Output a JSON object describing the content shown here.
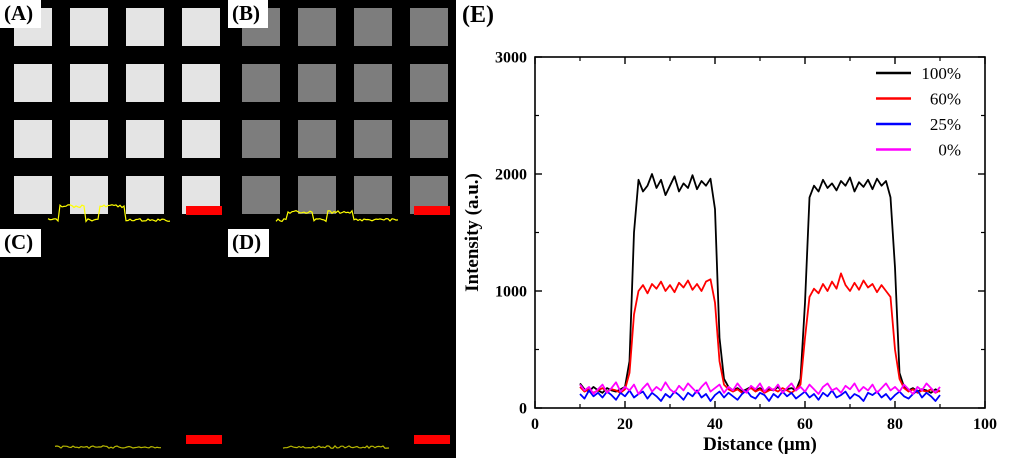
{
  "figure": {
    "e_label": "(E)",
    "panels": [
      {
        "label": "(A)",
        "squares": true,
        "square_color": "#e4e4e4",
        "trace": "bumps",
        "trace_amp": 14,
        "trace_color": "#ffff00",
        "scalebar_color": "#ff0000"
      },
      {
        "label": "(B)",
        "squares": true,
        "square_color": "#7d7d7d",
        "trace": "bumps",
        "trace_amp": 8,
        "trace_color": "#ffff00",
        "scalebar_color": "#ff0000"
      },
      {
        "label": "(C)",
        "squares": false,
        "square_color": "#000000",
        "trace": "flat",
        "trace_amp": 0,
        "trace_color": "#d8d800",
        "scalebar_color": "#ff0000"
      },
      {
        "label": "(D)",
        "squares": false,
        "square_color": "#000000",
        "trace": "flat",
        "trace_amp": 0,
        "trace_color": "#d8d800",
        "scalebar_color": "#ff0000"
      }
    ]
  },
  "chart_data": {
    "type": "line",
    "title": "",
    "xlabel": "Distance (μm)",
    "ylabel": "Intensity (a.u.)",
    "xlim": [
      0,
      100
    ],
    "ylim": [
      0,
      3000
    ],
    "xticks": [
      0,
      20,
      40,
      60,
      80,
      100
    ],
    "yticks": [
      0,
      1000,
      2000,
      3000
    ],
    "x_minor_step": 10,
    "y_minor_step": 500,
    "grid": false,
    "legend_position": "top-right",
    "series": [
      {
        "name": "100%",
        "color": "#000000",
        "x_start": 10,
        "x_step": 1,
        "y": [
          210,
          160,
          140,
          180,
          150,
          130,
          170,
          150,
          140,
          160,
          180,
          400,
          1500,
          1950,
          1850,
          1900,
          2000,
          1880,
          1950,
          1820,
          1900,
          1980,
          1850,
          1920,
          1880,
          1990,
          1870,
          1940,
          1900,
          1960,
          1700,
          600,
          250,
          180,
          150,
          170,
          140,
          160,
          180,
          150,
          170,
          140,
          160,
          150,
          180,
          140,
          160,
          170,
          150,
          250,
          900,
          1800,
          1900,
          1850,
          1950,
          1880,
          1920,
          1860,
          1940,
          1900,
          1970,
          1850,
          1930,
          1890,
          1950,
          1870,
          1960,
          1900,
          1940,
          1800,
          1200,
          300,
          180,
          150,
          170,
          140,
          160,
          150,
          130,
          160,
          140
        ]
      },
      {
        "name": "60%",
        "color": "#ff0000",
        "x_start": 10,
        "x_step": 1,
        "y": [
          180,
          140,
          160,
          130,
          150,
          170,
          140,
          160,
          150,
          130,
          160,
          300,
          800,
          1000,
          1050,
          980,
          1060,
          1020,
          1080,
          1000,
          1050,
          990,
          1070,
          1030,
          1090,
          1010,
          1060,
          1000,
          1080,
          1100,
          900,
          400,
          200,
          160,
          140,
          160,
          130,
          150,
          170,
          140,
          160,
          130,
          150,
          160,
          140,
          170,
          150,
          130,
          160,
          200,
          600,
          950,
          1020,
          980,
          1060,
          1000,
          1080,
          1020,
          1150,
          1050,
          1000,
          1070,
          1010,
          1090,
          1030,
          1060,
          990,
          1050,
          1000,
          950,
          500,
          250,
          170,
          140,
          160,
          130,
          150,
          140,
          160,
          130,
          150
        ]
      },
      {
        "name": "25%",
        "color": "#0000ff",
        "x_start": 10,
        "x_step": 1,
        "y": [
          120,
          80,
          150,
          100,
          130,
          90,
          140,
          110,
          70,
          130,
          100,
          150,
          90,
          120,
          140,
          80,
          130,
          100,
          60,
          120,
          90,
          140,
          110,
          70,
          130,
          100,
          150,
          90,
          120,
          60,
          110,
          140,
          90,
          130,
          100,
          70,
          120,
          150,
          100,
          80,
          130,
          110,
          60,
          120,
          90,
          140,
          100,
          130,
          80,
          110,
          140,
          90,
          120,
          70,
          130,
          100,
          150,
          90,
          110,
          140,
          80,
          120,
          100,
          60,
          130,
          110,
          140,
          90,
          120,
          70,
          110,
          140,
          100,
          80,
          120,
          150,
          90,
          130,
          100,
          60,
          110
        ]
      },
      {
        "name": "0%",
        "color": "#ff00ff",
        "x_start": 10,
        "x_step": 1,
        "y": [
          200,
          150,
          180,
          120,
          160,
          200,
          130,
          170,
          220,
          140,
          180,
          150,
          200,
          120,
          170,
          210,
          140,
          180,
          150,
          220,
          160,
          130,
          190,
          150,
          210,
          170,
          130,
          180,
          220,
          140,
          170,
          200,
          130,
          180,
          150,
          210,
          160,
          130,
          190,
          160,
          210,
          140,
          180,
          150,
          200,
          130,
          170,
          210,
          150,
          180,
          140,
          200,
          160,
          120,
          180,
          210,
          150,
          170,
          130,
          190,
          160,
          210,
          140,
          180,
          150,
          200,
          130,
          170,
          210,
          150,
          180,
          140,
          200,
          160,
          120,
          180,
          150,
          210,
          170,
          130,
          180
        ]
      }
    ]
  }
}
